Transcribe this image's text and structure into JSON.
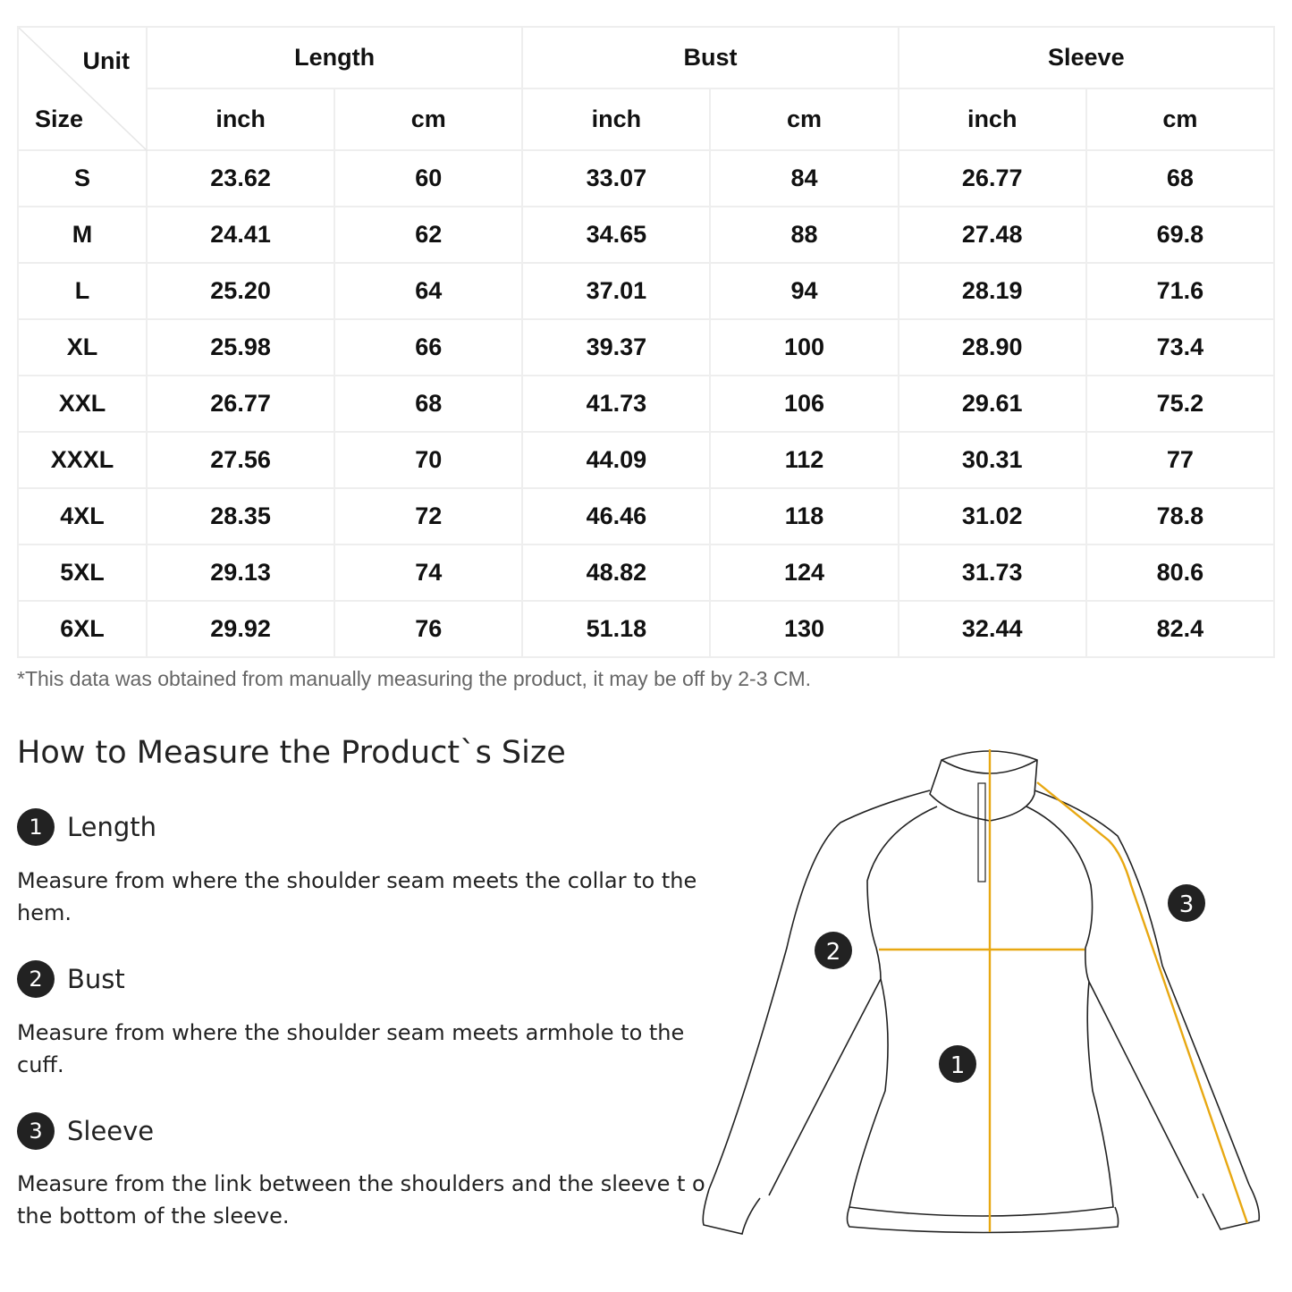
{
  "table": {
    "corner_top": "Unit",
    "corner_bottom": "Size",
    "groups": [
      "Length",
      "Bust",
      "Sleeve"
    ],
    "units": [
      "inch",
      "cm",
      "inch",
      "cm",
      "inch",
      "cm"
    ],
    "rows": [
      {
        "size": "S",
        "values": [
          "23.62",
          "60",
          "33.07",
          "84",
          "26.77",
          "68"
        ]
      },
      {
        "size": "M",
        "values": [
          "24.41",
          "62",
          "34.65",
          "88",
          "27.48",
          "69.8"
        ]
      },
      {
        "size": "L",
        "values": [
          "25.20",
          "64",
          "37.01",
          "94",
          "28.19",
          "71.6"
        ]
      },
      {
        "size": "XL",
        "values": [
          "25.98",
          "66",
          "39.37",
          "100",
          "28.90",
          "73.4"
        ]
      },
      {
        "size": "XXL",
        "values": [
          "26.77",
          "68",
          "41.73",
          "106",
          "29.61",
          "75.2"
        ]
      },
      {
        "size": "XXXL",
        "values": [
          "27.56",
          "70",
          "44.09",
          "112",
          "30.31",
          "77"
        ]
      },
      {
        "size": "4XL",
        "values": [
          "28.35",
          "72",
          "46.46",
          "118",
          "31.02",
          "78.8"
        ]
      },
      {
        "size": "5XL",
        "values": [
          "29.13",
          "74",
          "48.82",
          "124",
          "31.73",
          "80.6"
        ]
      },
      {
        "size": "6XL",
        "values": [
          "29.92",
          "76",
          "51.18",
          "130",
          "32.44",
          "82.4"
        ]
      }
    ]
  },
  "note": "*This data was obtained from manually measuring the product, it may be off by 2-3 CM.",
  "howto_title": "How to Measure the Product`s Size",
  "steps": [
    {
      "num": "1",
      "title": "Length",
      "desc": "Measure from where the shoulder seam meets the collar to the hem."
    },
    {
      "num": "2",
      "title": "Bust",
      "desc": "Measure from where the shoulder seam meets armhole to the cuff."
    },
    {
      "num": "3",
      "title": "Sleeve",
      "desc": "Measure from the link between the shoulders and the sleeve t o the bottom of the sleeve."
    }
  ],
  "diagram_markers": [
    "1",
    "2",
    "3"
  ],
  "colors": {
    "measure_line": "#e8a812",
    "marker": "#222222",
    "grid": "#eeeeee",
    "note": "#666666"
  }
}
